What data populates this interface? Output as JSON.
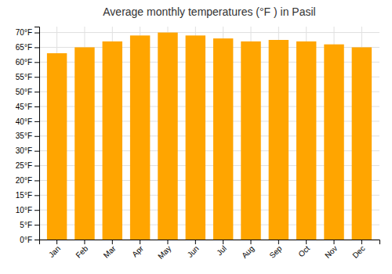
{
  "chart_data": {
    "type": "bar",
    "title": "Average monthly temperatures (°F ) in Pasil",
    "categories": [
      "Jan",
      "Feb",
      "Mar",
      "Apr",
      "May",
      "Jun",
      "Jul",
      "Aug",
      "Sep",
      "Oct",
      "Nov",
      "Dec"
    ],
    "values": [
      63,
      65,
      67,
      69,
      70,
      69,
      68,
      67,
      67.5,
      67,
      66,
      65
    ],
    "color": "#FFA500",
    "ylim": [
      0,
      72
    ],
    "yticks": [
      {
        "value": 0,
        "label": "0°F"
      },
      {
        "value": 5,
        "label": "5°F"
      },
      {
        "value": 10,
        "label": "10°F"
      },
      {
        "value": 15,
        "label": "15°F"
      },
      {
        "value": 20,
        "label": "20°F"
      },
      {
        "value": 25,
        "label": "25°F"
      },
      {
        "value": 30,
        "label": "30°F"
      },
      {
        "value": 35,
        "label": "35°F"
      },
      {
        "value": 40,
        "label": "40°F"
      },
      {
        "value": 45,
        "label": "45°F"
      },
      {
        "value": 50,
        "label": "50°F"
      },
      {
        "value": 55,
        "label": "55°F"
      },
      {
        "value": 60,
        "label": "60°F"
      },
      {
        "value": 65,
        "label": "65°F"
      },
      {
        "value": 70,
        "label": "70°F"
      }
    ],
    "grid": true
  }
}
